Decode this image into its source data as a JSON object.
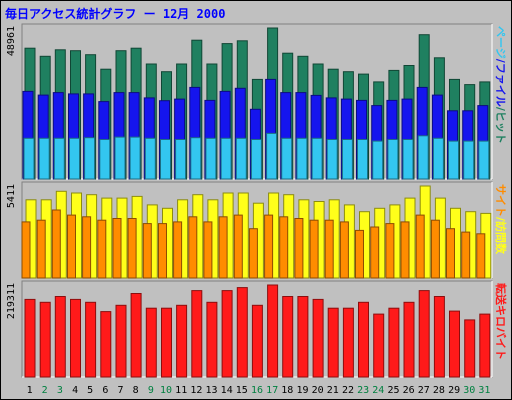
{
  "title": "毎日アクセス統計グラフ ー  12月 2000",
  "colors": {
    "background": "#c0c0c0",
    "hits": "#1f8060",
    "files": "#1515ee",
    "pages": "#33c6f0",
    "visits": "#ffff1a",
    "sites": "#ff8c00",
    "kbytes": "#ff1a1a",
    "weekday_label": "#000000",
    "weekend_label": "#008040"
  },
  "chart_data": [
    {
      "type": "bar",
      "panel": "top",
      "ymax_label": "48961",
      "ylim": [
        0,
        48961
      ],
      "right_label_parts": [
        {
          "text": "ページ",
          "color": "#33c6f0"
        },
        {
          "text": "/",
          "color": "#1515ee"
        },
        {
          "text": "ファイル",
          "color": "#1515ee"
        },
        {
          "text": "/",
          "color": "#1f8060"
        },
        {
          "text": "ヒット",
          "color": "#1f8060"
        }
      ],
      "categories": [
        "1",
        "2",
        "3",
        "4",
        "5",
        "6",
        "7",
        "8",
        "9",
        "10",
        "11",
        "12",
        "13",
        "14",
        "15",
        "16",
        "17",
        "18",
        "19",
        "20",
        "21",
        "22",
        "23",
        "24",
        "25",
        "26",
        "27",
        "28",
        "29",
        "30",
        "31"
      ],
      "series": [
        {
          "key": "hits",
          "values": [
            42400,
            39800,
            41900,
            41600,
            40300,
            35600,
            41600,
            42400,
            37300,
            34800,
            37300,
            45000,
            37300,
            43900,
            44800,
            32300,
            48961,
            40800,
            39800,
            37300,
            35600,
            34800,
            34000,
            31500,
            35200,
            36800,
            46800,
            39300,
            32300,
            30600,
            31500
          ]
        },
        {
          "key": "files",
          "values": [
            28400,
            27200,
            28000,
            27600,
            27600,
            25100,
            28000,
            28000,
            26300,
            25400,
            25900,
            29700,
            25500,
            28400,
            29400,
            22600,
            32300,
            28000,
            28000,
            27100,
            26300,
            25900,
            25500,
            23800,
            25500,
            25900,
            29700,
            27200,
            22100,
            22100,
            23800
          ]
        },
        {
          "key": "pages",
          "values": [
            13200,
            13200,
            13200,
            13200,
            13400,
            12800,
            13600,
            13600,
            13200,
            12800,
            12800,
            13400,
            13200,
            13200,
            13200,
            12800,
            14800,
            13200,
            13200,
            13200,
            12800,
            12800,
            12800,
            12300,
            12800,
            12800,
            14000,
            13200,
            12300,
            12300,
            12300
          ]
        }
      ]
    },
    {
      "type": "bar",
      "panel": "middle",
      "ymax_label": "5411",
      "ylim": [
        0,
        5411
      ],
      "right_label_parts": [
        {
          "text": "サイト",
          "color": "#ff8c00"
        },
        {
          "text": "/",
          "color": "#ffff1a"
        },
        {
          "text": "訪問数",
          "color": "#ffff1a"
        }
      ],
      "series": [
        {
          "key": "visits",
          "values": [
            4600,
            4600,
            5100,
            5000,
            4900,
            4700,
            4700,
            4800,
            4300,
            4100,
            4600,
            4900,
            4600,
            5000,
            5000,
            4400,
            5000,
            4900,
            4600,
            4500,
            4600,
            4300,
            3900,
            4100,
            4300,
            4700,
            5411,
            4700,
            4100,
            3900,
            3800
          ]
        },
        {
          "key": "sites",
          "values": [
            3300,
            3400,
            4000,
            3700,
            3600,
            3400,
            3500,
            3500,
            3200,
            3200,
            3300,
            3600,
            3300,
            3600,
            3700,
            2900,
            3700,
            3600,
            3500,
            3400,
            3400,
            3300,
            2800,
            3000,
            3200,
            3300,
            3700,
            3400,
            2900,
            2700,
            2600
          ]
        }
      ]
    },
    {
      "type": "bar",
      "panel": "bottom",
      "ymax_label": "219311",
      "ylim": [
        0,
        219311
      ],
      "right_label_parts": [
        {
          "text": "転送キロバイト",
          "color": "#ff1a1a"
        }
      ],
      "series": [
        {
          "key": "kbytes",
          "values": [
            185000,
            178000,
            192000,
            185000,
            178000,
            156000,
            171000,
            199000,
            164000,
            164000,
            171000,
            206000,
            178000,
            206000,
            213000,
            171000,
            219311,
            192000,
            192000,
            185000,
            164000,
            164000,
            178000,
            150000,
            164000,
            178000,
            206000,
            192000,
            157000,
            136000,
            150000
          ]
        }
      ]
    }
  ]
}
